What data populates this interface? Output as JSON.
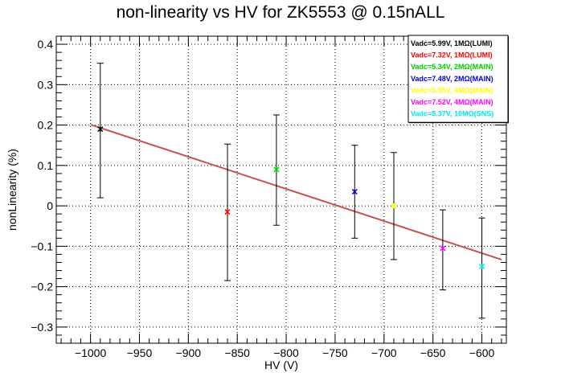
{
  "chart_data": {
    "type": "scatter",
    "title": "non-linearity vs HV for ZK5553 @ 0.15nALL",
    "xlabel": "HV (V)",
    "ylabel": "nonLinearity (%)",
    "xlim": [
      -1035,
      -575
    ],
    "ylim": [
      -0.34,
      0.42
    ],
    "x_ticks": [
      -1000,
      -950,
      -900,
      -850,
      -800,
      -750,
      -700,
      -650,
      -600
    ],
    "x_tick_labels": [
      "−1000",
      "−950",
      "−900",
      "−850",
      "−800",
      "−750",
      "−700",
      "−650",
      "−600"
    ],
    "y_ticks": [
      -0.3,
      -0.2,
      -0.1,
      0,
      0.1,
      0.2,
      0.3,
      0.4
    ],
    "y_tick_labels": [
      "−0.3",
      "−0.2",
      "−0.1",
      "0",
      "0.1",
      "0.2",
      "0.3",
      "0.4"
    ],
    "grid": true,
    "legend_position": "top-right",
    "series": [
      {
        "name": "Vadc=5.99V, 1MΩ(LUMI)",
        "color": "#000000",
        "x": -990,
        "y": 0.19,
        "yerr_low": 0.02,
        "yerr_high": 0.353
      },
      {
        "name": "Vadc=7.32V, 1MΩ(LUMI)",
        "color": "#ff0000",
        "x": -860,
        "y": -0.015,
        "yerr_low": -0.185,
        "yerr_high": 0.153
      },
      {
        "name": "Vadc=5.34V, 2MΩ(MAIN)",
        "color": "#00cc00",
        "x": -810,
        "y": 0.09,
        "yerr_low": -0.048,
        "yerr_high": 0.225
      },
      {
        "name": "Vadc=7.48V, 2MΩ(MAIN)",
        "color": "#0000cc",
        "x": -730,
        "y": 0.035,
        "yerr_low": -0.08,
        "yerr_high": 0.15
      },
      {
        "name": "Vadc=5.55V, 4MΩ(MAIN)",
        "color": "#ffff00",
        "x": -690,
        "y": 0.0,
        "yerr_low": -0.133,
        "yerr_high": 0.132
      },
      {
        "name": "Vadc=7.52V, 4MΩ(MAIN)",
        "color": "#ff00ff",
        "x": -640,
        "y": -0.105,
        "yerr_low": -0.208,
        "yerr_high": -0.01
      },
      {
        "name": "Vadc=5.37V, 10MΩ(SNS)",
        "color": "#00e5e5",
        "x": -600,
        "y": -0.15,
        "yerr_low": -0.278,
        "yerr_high": -0.03
      }
    ],
    "fit_line": {
      "color": "#c8504f",
      "x": [
        -1000,
        -580
      ],
      "y": [
        0.201,
        -0.133
      ]
    }
  }
}
